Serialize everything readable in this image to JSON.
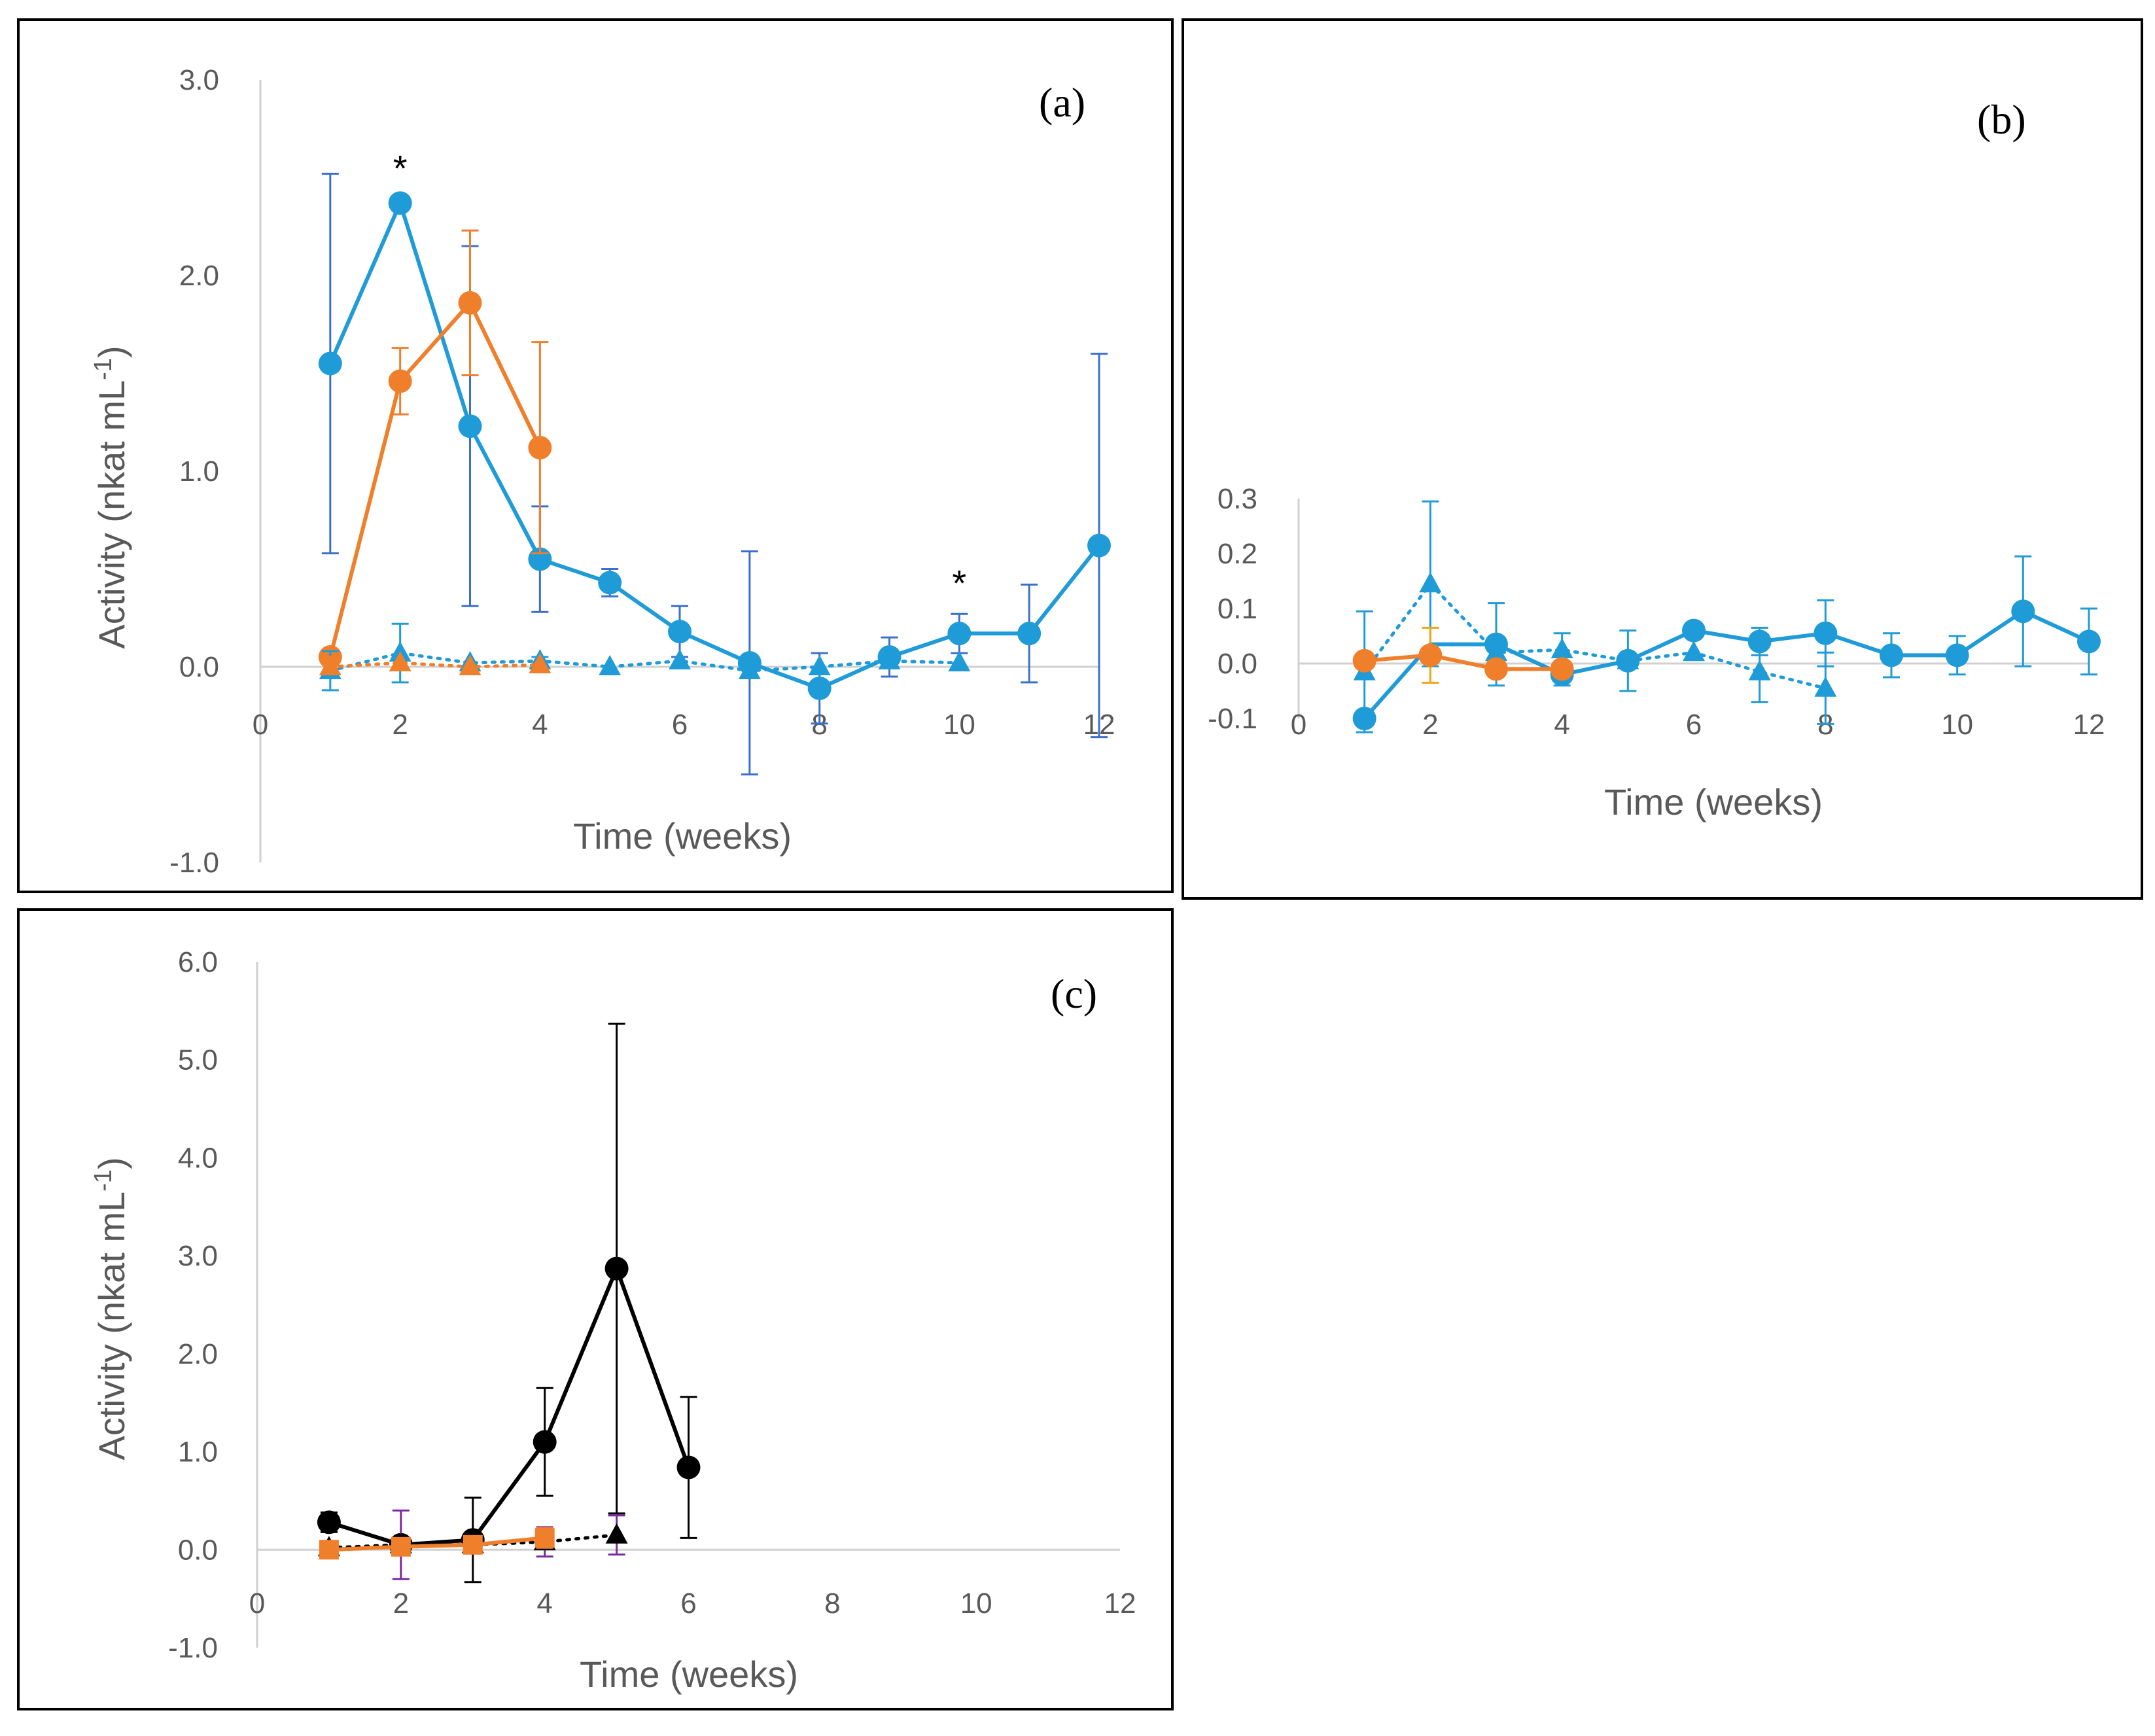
{
  "chart_data": [
    {
      "panel": "(a)",
      "type": "line",
      "xlabel": "Time (weeks)",
      "ylabel": "Activity (nkat mL",
      "ylabel_sup": "-1",
      "ylabel_close": ")",
      "xlim": [
        0,
        12
      ],
      "ylim": [
        -1.0,
        3.0
      ],
      "xticks": [
        "0",
        "2",
        "4",
        "6",
        "8",
        "10",
        "12"
      ],
      "yticks": [
        "3.0",
        "2.0",
        "1.0",
        "0.0",
        "-1.0"
      ],
      "series": [
        {
          "x": [
            1,
            2,
            3,
            4,
            5,
            6,
            7,
            8,
            9,
            10,
            11,
            12
          ],
          "y": [
            1.55,
            2.37,
            1.23,
            0.55,
            0.43,
            0.18,
            0.02,
            -0.11,
            0.05,
            0.17,
            0.17,
            0.62
          ],
          "err": [
            0.97,
            0,
            0.92,
            0.27,
            0.07,
            0.13,
            0.57,
            0.18,
            0.1,
            0.1,
            0.25,
            0.98
          ],
          "color": "#1f9bd7",
          "errColor": "#3a6fd0",
          "marker": "circle",
          "dash": "solid",
          "width": 6
        },
        {
          "x": [
            1,
            2,
            3,
            4
          ],
          "y": [
            0.05,
            1.46,
            1.86,
            1.12
          ],
          "err": [
            0,
            0.17,
            0.37,
            0.54
          ],
          "color": "#f07f2c",
          "errColor": "#f07f2c",
          "marker": "circle",
          "dash": "solid",
          "width": 6
        },
        {
          "x": [
            1,
            2,
            3,
            4,
            5,
            6,
            7,
            8,
            9,
            10
          ],
          "y": [
            -0.02,
            0.07,
            0.02,
            0.03,
            0.0,
            0.03,
            -0.02,
            0.0,
            0.03,
            0.02
          ],
          "err": [
            0.1,
            0.15,
            0,
            0.02,
            0,
            0,
            0,
            0,
            0,
            0
          ],
          "color": "#1f9bd7",
          "errColor": "#1f9bd7",
          "marker": "triangle",
          "dash": "dotted",
          "width": 5
        },
        {
          "x": [
            1,
            2,
            3,
            4
          ],
          "y": [
            0.0,
            0.02,
            0.0,
            0.01
          ],
          "err": [
            0,
            0,
            0,
            0
          ],
          "color": "#f07f2c",
          "errColor": "#f07f2c",
          "marker": "triangle",
          "dash": "dotted",
          "width": 5
        }
      ],
      "annotations": [
        {
          "x": 2,
          "y": 2.55,
          "text": "*"
        },
        {
          "x": 10,
          "y": 0.43,
          "text": "*"
        }
      ]
    },
    {
      "panel": "(b)",
      "type": "line",
      "xlabel": "Time (weeks)",
      "ylabel": "",
      "xlim": [
        0,
        12
      ],
      "ylim": [
        -0.1,
        0.3
      ],
      "xticks": [
        "0",
        "2",
        "4",
        "6",
        "8",
        "10",
        "12"
      ],
      "yticks": [
        "0.3",
        "0.2",
        "0.1",
        "0.0",
        "-0.1"
      ],
      "series": [
        {
          "x": [
            1,
            2,
            3,
            4,
            5,
            6,
            7,
            8,
            9,
            10,
            11,
            12
          ],
          "y": [
            -0.1,
            0.035,
            0.035,
            -0.02,
            0.005,
            0.06,
            0.04,
            0.055,
            0.015,
            0.015,
            0.095,
            0.04
          ],
          "err": [
            0,
            0,
            0.075,
            0.02,
            0.055,
            0.01,
            0.025,
            0.06,
            0.04,
            0.035,
            0.1,
            0.06
          ],
          "color": "#1f9bd7",
          "errColor": "#1f9bd7",
          "marker": "circle",
          "dash": "solid",
          "width": 6,
          "markerSkip": [
            1
          ]
        },
        {
          "x": [
            1,
            2,
            3,
            4,
            5,
            6,
            7,
            8
          ],
          "y": [
            -0.015,
            0.145,
            0.02,
            0.025,
            0.005,
            0.02,
            -0.015,
            -0.045
          ],
          "err": [
            0.11,
            0.15,
            0,
            0.03,
            0,
            0,
            0.055,
            0.065
          ],
          "color": "#1f9bd7",
          "errColor": "#1f9bd7",
          "marker": "triangle",
          "dash": "dotted",
          "width": 5
        },
        {
          "x": [
            1,
            2,
            3,
            4
          ],
          "y": [
            0.005,
            0.015,
            -0.01,
            -0.01
          ],
          "err": [
            0,
            0.05,
            0,
            0
          ],
          "color": "#f07f2c",
          "errColor": "#f2a51a",
          "marker": "circle",
          "dash": "solid",
          "width": 6
        }
      ],
      "annotations": []
    },
    {
      "panel": "(c)",
      "type": "line",
      "xlabel": "Time (weeks)",
      "ylabel": "Activity (nkat mL",
      "ylabel_sup": "-1",
      "ylabel_close": ")",
      "xlim": [
        0,
        12
      ],
      "ylim": [
        -1.0,
        6.0
      ],
      "xticks": [
        "0",
        "2",
        "4",
        "6",
        "8",
        "10",
        "12"
      ],
      "yticks": [
        "6.0",
        "5.0",
        "4.0",
        "3.0",
        "2.0",
        "1.0",
        "0.0",
        "-1.0"
      ],
      "series": [
        {
          "x": [
            1,
            2,
            3,
            4,
            5,
            6
          ],
          "y": [
            0.28,
            0.05,
            0.1,
            1.1,
            2.87,
            0.84
          ],
          "err": [
            0.1,
            0,
            0.43,
            0.55,
            2.5,
            0.72
          ],
          "color": "#000000",
          "errColor": "#000000",
          "marker": "circle",
          "dash": "solid",
          "width": 6
        },
        {
          "x": [
            1,
            2,
            3,
            4,
            5
          ],
          "y": [
            0.02,
            0.05,
            0.05,
            0.08,
            0.15
          ],
          "err": [
            0,
            0.35,
            0,
            0.15,
            0.2
          ],
          "color": "#000000",
          "errColor": "#7a2aa0",
          "marker": "triangle",
          "dash": "dotted",
          "width": 5
        },
        {
          "x": [
            1,
            2,
            3,
            4
          ],
          "y": [
            0.0,
            0.03,
            0.05,
            0.12
          ],
          "err": [
            0,
            0,
            0,
            0.1
          ],
          "color": "#f07f2c",
          "errColor": "#f07f2c",
          "marker": "square",
          "dash": "solid",
          "width": 6
        }
      ],
      "annotations": []
    }
  ]
}
